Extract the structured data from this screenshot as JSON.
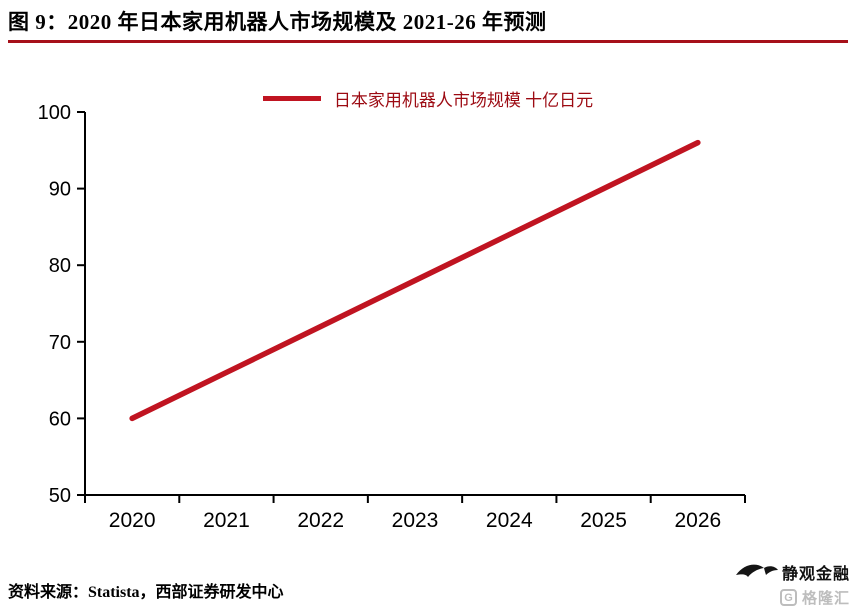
{
  "header": {
    "title": "图 9：2020 年日本家用机器人市场规模及 2021-26 年预测"
  },
  "chart_data": {
    "type": "line",
    "title": "",
    "xlabel": "",
    "ylabel": "",
    "legend": "日本家用机器人市场规模 十亿日元",
    "legend_position": "top",
    "grid": false,
    "categories": [
      "2020",
      "2021",
      "2022",
      "2023",
      "2024",
      "2025",
      "2026"
    ],
    "series": [
      {
        "name": "日本家用机器人市场规模 十亿日元",
        "values": [
          60,
          66,
          72,
          78,
          84,
          90,
          96
        ]
      }
    ],
    "ylim": [
      50,
      100
    ],
    "ytick_step": 10,
    "yticks": [
      50,
      60,
      70,
      80,
      90,
      100
    ],
    "line_color": "#c01421"
  },
  "footer": {
    "source": "资料来源：Statista，西部证券研发中心"
  },
  "watermark": {
    "brand": "静观金融",
    "logo_text": "格隆汇"
  },
  "colors": {
    "accent_red": "#c01421",
    "title_rule_red": "#a6101a",
    "legend_text_red": "#9c0a12",
    "watermark_grey": "#bdbdbd"
  }
}
